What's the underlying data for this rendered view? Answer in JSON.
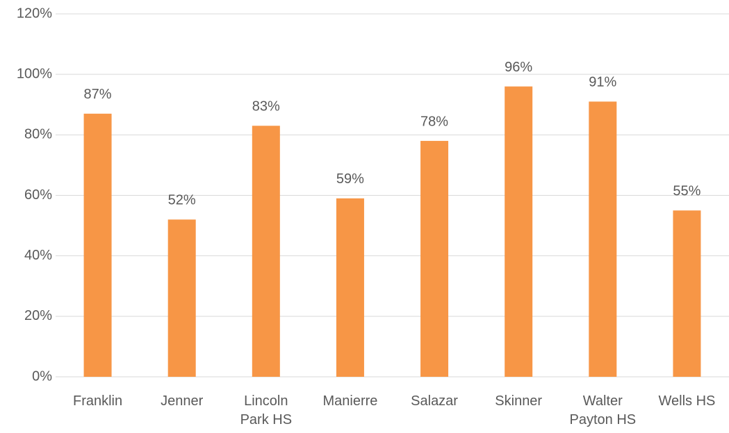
{
  "chart_data": {
    "type": "bar",
    "categories": [
      "Franklin",
      "Jenner",
      "Lincoln Park HS",
      "Manierre",
      "Salazar",
      "Skinner",
      "Walter Payton HS",
      "Wells HS"
    ],
    "values": [
      87,
      52,
      83,
      59,
      78,
      96,
      91,
      55
    ],
    "value_labels": [
      "87%",
      "52%",
      "83%",
      "59%",
      "78%",
      "96%",
      "91%",
      "55%"
    ],
    "color": "#f79646",
    "ylim": [
      0,
      120
    ],
    "yticks": [
      {
        "value": 0,
        "label": "0%"
      },
      {
        "value": 20,
        "label": "20%"
      },
      {
        "value": 40,
        "label": "40%"
      },
      {
        "value": 60,
        "label": "60%"
      },
      {
        "value": 80,
        "label": "80%"
      },
      {
        "value": 100,
        "label": "100%"
      },
      {
        "value": 120,
        "label": "120%"
      }
    ],
    "grid": true
  }
}
